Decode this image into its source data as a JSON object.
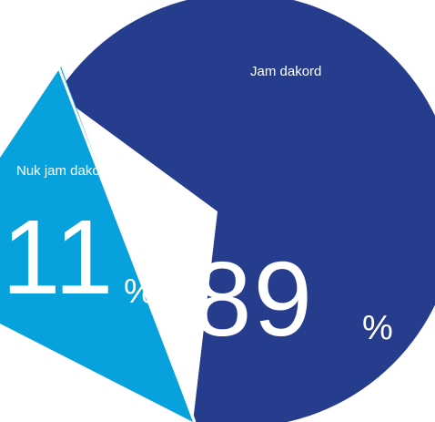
{
  "chart_data": {
    "type": "pie",
    "slices": [
      {
        "label": "Jam dakord",
        "value": 89,
        "value_text": "89",
        "unit": "%",
        "color": "#263c8c"
      },
      {
        "label": "Nuk jam dakord",
        "value": 11,
        "value_text": "11",
        "unit": "%",
        "color": "#07a1dd"
      }
    ]
  }
}
